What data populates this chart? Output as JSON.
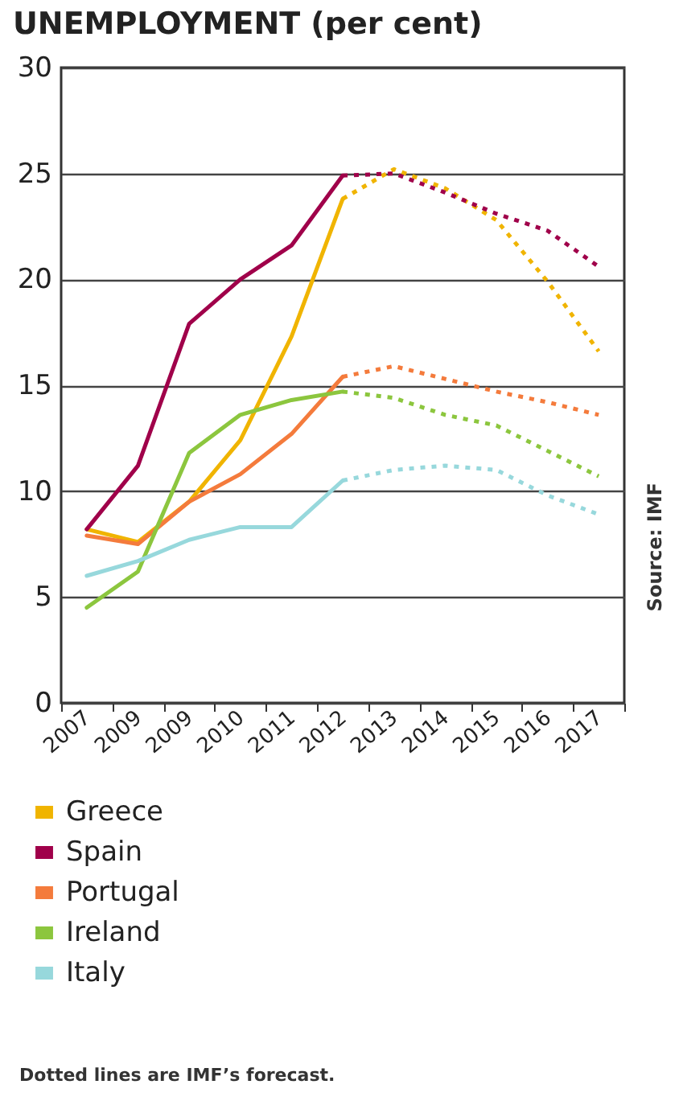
{
  "chart_data": {
    "type": "line",
    "title": "UNEMPLOYMENT (per cent)",
    "categories": [
      "2007",
      "2009",
      "2009",
      "2010",
      "2011",
      "2012",
      "2013",
      "2014",
      "2015",
      "2016",
      "2017"
    ],
    "series": [
      {
        "name": "Greece",
        "color": "#f0b400",
        "line_style": "solid",
        "values": [
          8.2,
          7.6,
          9.5,
          12.4,
          17.3,
          23.8,
          null,
          null,
          null,
          null,
          null
        ]
      },
      {
        "name": "Spain",
        "color": "#a0004a",
        "line_style": "solid",
        "values": [
          8.2,
          11.2,
          17.9,
          20.0,
          21.6,
          24.9,
          null,
          null,
          null,
          null,
          null
        ]
      },
      {
        "name": "Portugal",
        "color": "#f47b3c",
        "line_style": "solid",
        "values": [
          7.9,
          7.5,
          9.5,
          10.8,
          12.7,
          15.4,
          null,
          null,
          null,
          null,
          null
        ]
      },
      {
        "name": "Ireland",
        "color": "#8cc63e",
        "line_style": "solid",
        "values": [
          4.5,
          6.2,
          11.8,
          13.6,
          14.3,
          14.7,
          null,
          null,
          null,
          null,
          null
        ]
      },
      {
        "name": "Italy",
        "color": "#97d8dc",
        "line_style": "solid",
        "values": [
          6.0,
          6.7,
          7.7,
          8.3,
          8.3,
          10.5,
          null,
          null,
          null,
          null,
          null
        ]
      },
      {
        "color": "#f0b400",
        "line_style": "dotted",
        "values": [
          null,
          null,
          null,
          null,
          null,
          23.8,
          25.2,
          24.3,
          22.8,
          19.9,
          16.6
        ]
      },
      {
        "color": "#a0004a",
        "line_style": "dotted",
        "values": [
          null,
          null,
          null,
          null,
          null,
          24.9,
          25.0,
          24.1,
          23.1,
          22.3,
          20.6
        ]
      },
      {
        "color": "#f47b3c",
        "line_style": "dotted",
        "values": [
          null,
          null,
          null,
          null,
          null,
          15.4,
          15.9,
          15.3,
          14.7,
          14.2,
          13.6
        ]
      },
      {
        "color": "#8cc63e",
        "line_style": "dotted",
        "values": [
          null,
          null,
          null,
          null,
          null,
          14.7,
          14.4,
          13.6,
          13.1,
          11.9,
          10.7
        ]
      },
      {
        "color": "#97d8dc",
        "line_style": "dotted",
        "values": [
          null,
          null,
          null,
          null,
          null,
          10.5,
          11.0,
          11.2,
          11.0,
          9.8,
          8.9
        ]
      }
    ],
    "ylim": [
      0,
      30
    ],
    "yticks": [
      0,
      5,
      10,
      15,
      20,
      25,
      30
    ],
    "grid": "y",
    "legend": "bottom",
    "annotations": [
      "Source: IMF",
      "Dotted lines are IMF’s forecast."
    ]
  }
}
